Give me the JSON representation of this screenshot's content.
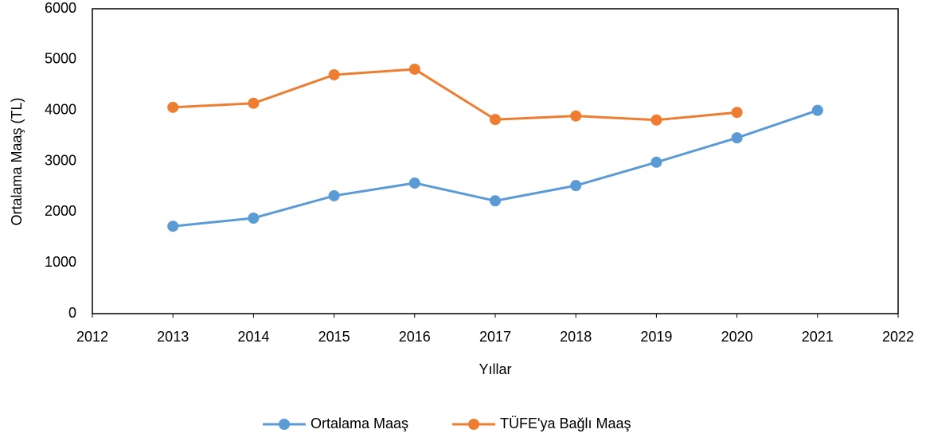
{
  "chart_data": {
    "type": "line",
    "x_label": "Yıllar",
    "y_label": "Ortalama Maaş (TL)",
    "x": [
      2013,
      2014,
      2015,
      2016,
      2017,
      2018,
      2019,
      2020,
      2021
    ],
    "series": [
      {
        "name": "Ortalama Maaş",
        "color": "#5b9bd5",
        "values": [
          1720,
          1880,
          2320,
          2570,
          2220,
          2520,
          2980,
          3460,
          4000
        ]
      },
      {
        "name": "TÜFE'ya Bağlı Maaş",
        "color": "#ed7d31",
        "values": [
          4060,
          4140,
          4700,
          4810,
          3820,
          3890,
          3810,
          3960,
          null
        ]
      }
    ],
    "xlim": [
      2012,
      2022
    ],
    "xticks": [
      2012,
      2013,
      2014,
      2015,
      2016,
      2017,
      2018,
      2019,
      2020,
      2021,
      2022
    ],
    "ylim": [
      0,
      6000
    ],
    "yticks": [
      0,
      1000,
      2000,
      3000,
      4000,
      5000,
      6000
    ],
    "grid": false,
    "legend": "bottom"
  }
}
